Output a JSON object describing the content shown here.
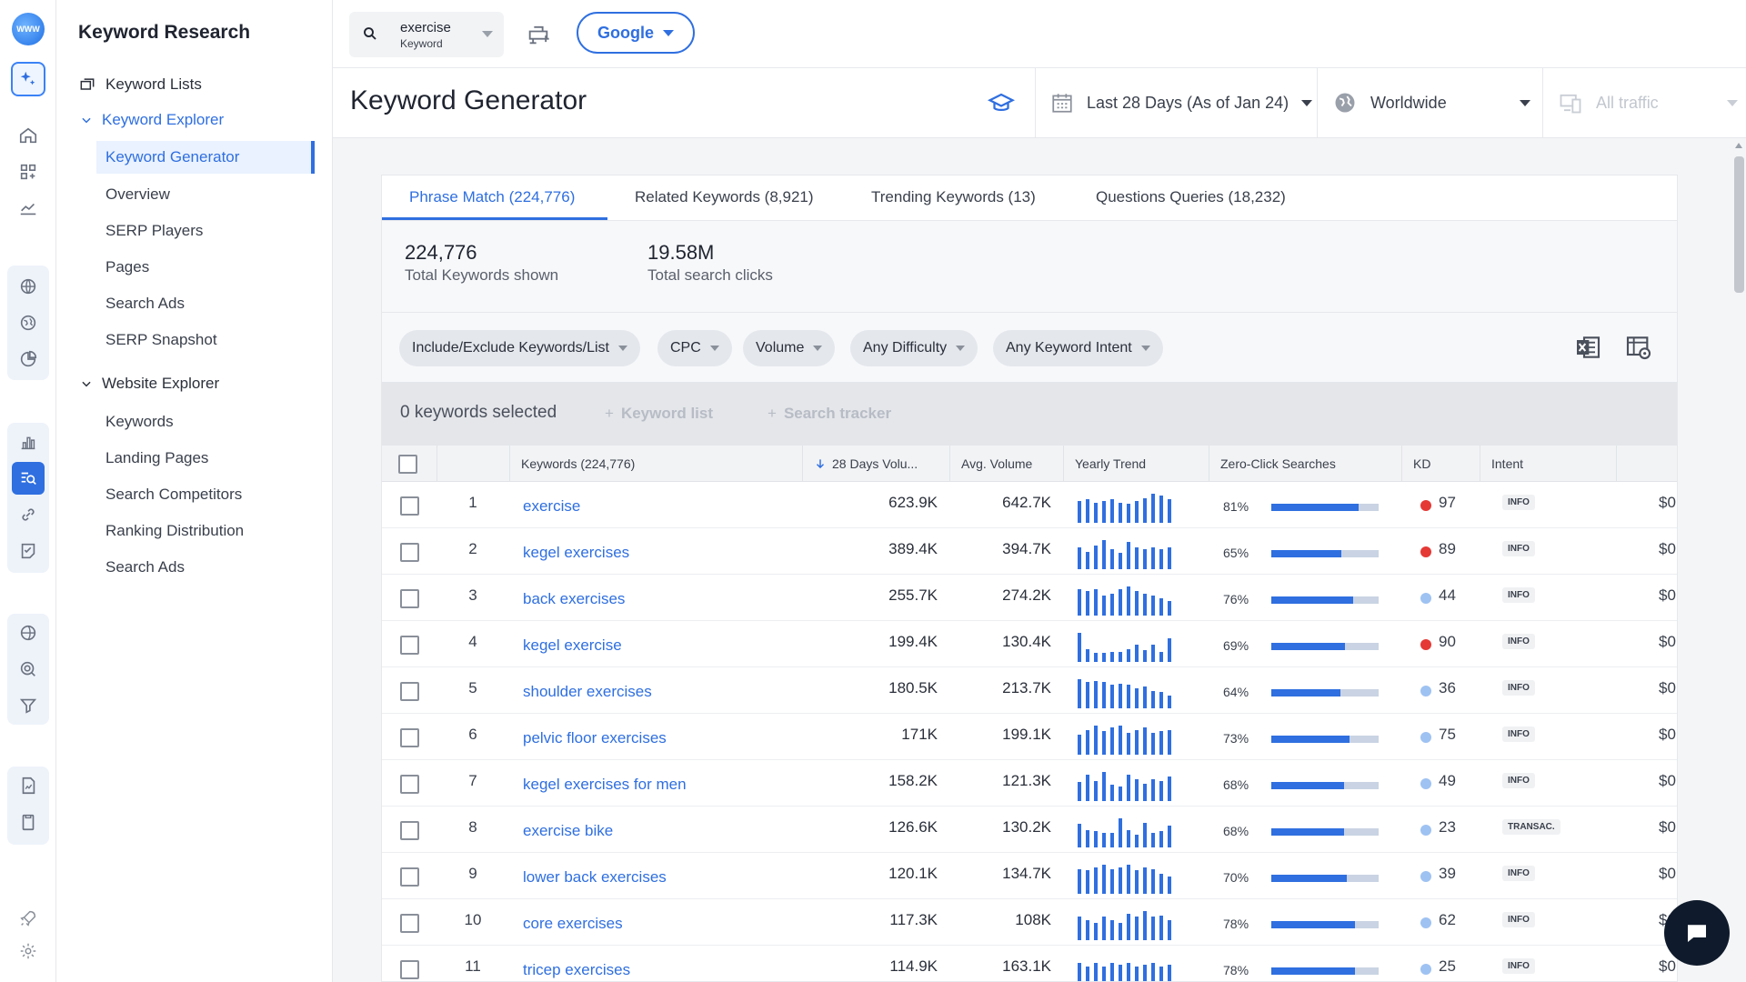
{
  "app": {
    "logo_text": "WWW"
  },
  "sidebar": {
    "title": "Keyword Research",
    "keyword_lists": "Keyword Lists",
    "keyword_explorer": {
      "label": "Keyword Explorer",
      "items": [
        "Keyword Generator",
        "Overview",
        "SERP Players",
        "Pages",
        "Search Ads",
        "SERP Snapshot"
      ]
    },
    "website_explorer": {
      "label": "Website Explorer",
      "items": [
        "Keywords",
        "Landing Pages",
        "Search Competitors",
        "Ranking Distribution",
        "Search Ads"
      ]
    }
  },
  "topbar": {
    "keyword": "exercise",
    "keyword_type": "Keyword",
    "engine": "Google"
  },
  "header": {
    "title": "Keyword Generator",
    "date_range": "Last 28 Days (As of Jan 24)",
    "geo": "Worldwide",
    "traffic": "All traffic"
  },
  "tabs": [
    "Phrase Match (224,776)",
    "Related Keywords (8,921)",
    "Trending Keywords (13)",
    "Questions Queries (18,232)"
  ],
  "stats": {
    "total_keywords_value": "224,776",
    "total_keywords_label": "Total Keywords shown",
    "total_clicks_value": "19.58M",
    "total_clicks_label": "Total search clicks"
  },
  "filters": [
    "Include/Exclude Keywords/List",
    "CPC",
    "Volume",
    "Any Difficulty",
    "Any Keyword Intent"
  ],
  "selection": {
    "selected": "0 keywords selected",
    "keyword_list": "Keyword list",
    "search_tracker": "Search tracker"
  },
  "table": {
    "headers": {
      "keywords": "Keywords (224,776)",
      "volume": "28 Days Volu...",
      "avg_volume": "Avg. Volume",
      "yearly_trend": "Yearly Trend",
      "zero_click": "Zero-Click Searches",
      "kd": "KD",
      "intent": "Intent"
    },
    "rows": [
      {
        "n": "1",
        "keyword": "exercise",
        "volume": "623.9K",
        "avg": "642.7K",
        "zc": "81%",
        "zc_frac": 0.81,
        "kd": "97",
        "kd_color": "#e53935",
        "intent": "INFO",
        "cpc": "$0",
        "trend": [
          0.75,
          0.8,
          0.7,
          0.75,
          0.8,
          0.7,
          0.65,
          0.75,
          0.85,
          1.0,
          0.95,
          0.8
        ]
      },
      {
        "n": "2",
        "keyword": "kegel exercises",
        "volume": "389.4K",
        "avg": "394.7K",
        "zc": "65%",
        "zc_frac": 0.65,
        "kd": "89",
        "kd_color": "#e53935",
        "intent": "INFO",
        "cpc": "$0",
        "trend": [
          0.75,
          0.6,
          0.8,
          1.0,
          0.7,
          0.55,
          0.95,
          0.75,
          0.7,
          0.75,
          0.7,
          0.75
        ]
      },
      {
        "n": "3",
        "keyword": "back exercises",
        "volume": "255.7K",
        "avg": "274.2K",
        "zc": "76%",
        "zc_frac": 0.76,
        "kd": "44",
        "kd_color": "#9ec2f2",
        "intent": "INFO",
        "cpc": "$0",
        "trend": [
          0.9,
          0.85,
          0.9,
          0.7,
          0.75,
          0.9,
          1.0,
          0.85,
          0.75,
          0.7,
          0.6,
          0.5
        ]
      },
      {
        "n": "4",
        "keyword": "kegel exercise",
        "volume": "199.4K",
        "avg": "130.4K",
        "zc": "69%",
        "zc_frac": 0.69,
        "kd": "90",
        "kd_color": "#e53935",
        "intent": "INFO",
        "cpc": "$0",
        "trend": [
          1.0,
          0.45,
          0.3,
          0.3,
          0.35,
          0.35,
          0.45,
          0.6,
          0.4,
          0.6,
          0.35,
          0.8
        ]
      },
      {
        "n": "5",
        "keyword": "shoulder exercises",
        "volume": "180.5K",
        "avg": "213.7K",
        "zc": "64%",
        "zc_frac": 0.64,
        "kd": "36",
        "kd_color": "#9ec2f2",
        "intent": "INFO",
        "cpc": "$0",
        "trend": [
          1.0,
          0.9,
          0.95,
          0.9,
          0.8,
          0.85,
          0.8,
          0.7,
          0.75,
          0.6,
          0.55,
          0.45
        ]
      },
      {
        "n": "6",
        "keyword": "pelvic floor exercises",
        "volume": "171K",
        "avg": "199.1K",
        "zc": "73%",
        "zc_frac": 0.73,
        "kd": "75",
        "kd_color": "#9ec2f2",
        "intent": "INFO",
        "cpc": "$0",
        "trend": [
          0.7,
          0.85,
          1.0,
          0.8,
          0.95,
          1.0,
          0.75,
          0.85,
          0.95,
          0.75,
          0.8,
          0.85
        ]
      },
      {
        "n": "7",
        "keyword": "kegel exercises for men",
        "volume": "158.2K",
        "avg": "121.3K",
        "zc": "68%",
        "zc_frac": 0.68,
        "kd": "49",
        "kd_color": "#9ec2f2",
        "intent": "INFO",
        "cpc": "$0",
        "trend": [
          0.65,
          0.9,
          0.7,
          1.0,
          0.55,
          0.5,
          0.9,
          0.75,
          0.6,
          0.75,
          0.7,
          0.85
        ]
      },
      {
        "n": "8",
        "keyword": "exercise bike",
        "volume": "126.6K",
        "avg": "130.2K",
        "zc": "68%",
        "zc_frac": 0.68,
        "kd": "23",
        "kd_color": "#9ec2f2",
        "intent": "TRANSAC.",
        "cpc": "$0",
        "trend": [
          0.8,
          0.6,
          0.55,
          0.5,
          0.5,
          1.0,
          0.6,
          0.45,
          0.85,
          0.5,
          0.55,
          0.75
        ]
      },
      {
        "n": "9",
        "keyword": "lower back exercises",
        "volume": "120.1K",
        "avg": "134.7K",
        "zc": "70%",
        "zc_frac": 0.7,
        "kd": "39",
        "kd_color": "#9ec2f2",
        "intent": "INFO",
        "cpc": "$0",
        "trend": [
          0.85,
          0.8,
          0.9,
          1.0,
          0.85,
          0.9,
          1.0,
          0.8,
          0.9,
          0.85,
          0.7,
          0.6
        ]
      },
      {
        "n": "10",
        "keyword": "core exercises",
        "volume": "117.3K",
        "avg": "108K",
        "zc": "78%",
        "zc_frac": 0.78,
        "kd": "62",
        "kd_color": "#9ec2f2",
        "intent": "INFO",
        "cpc": "$0",
        "trend": [
          0.8,
          0.7,
          0.6,
          0.8,
          0.7,
          0.6,
          0.9,
          0.8,
          1.0,
          0.8,
          0.85,
          0.7
        ]
      },
      {
        "n": "11",
        "keyword": "tricep exercises",
        "volume": "114.9K",
        "avg": "163.1K",
        "zc": "78%",
        "zc_frac": 0.78,
        "kd": "25",
        "kd_color": "#9ec2f2",
        "intent": "INFO",
        "cpc": "$0",
        "trend": [
          0.8,
          0.7,
          0.8,
          0.7,
          0.8,
          0.75,
          0.8,
          0.7,
          0.75,
          0.8,
          0.7,
          0.75
        ]
      }
    ]
  },
  "colors": {
    "accent": "#2f6fe0",
    "kd_high": "#e53935",
    "kd_low": "#9ec2f2"
  }
}
